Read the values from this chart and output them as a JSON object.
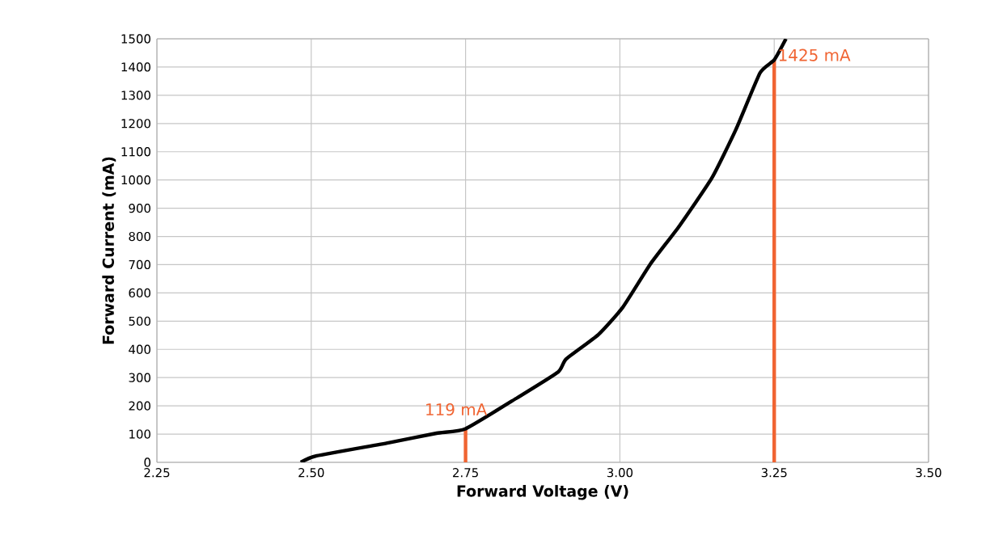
{
  "chart_data": {
    "type": "line",
    "xlabel": "Forward Voltage (V)",
    "ylabel": "Forward Current (mA)",
    "x": [
      2.483,
      2.509,
      2.625,
      2.703,
      2.75,
      2.834,
      2.9,
      2.913,
      2.965,
      3.005,
      3.05,
      3.096,
      3.149,
      3.188,
      3.227,
      3.25,
      3.269
    ],
    "series": [
      {
        "type": "bar",
        "color": "#f06432",
        "x": [
          2.75,
          3.25
        ],
        "values": [
          119,
          1425
        ]
      },
      {
        "color": "#000000",
        "values": [
          0,
          23,
          69,
          103,
          119,
          229,
          320,
          366,
          452,
          550,
          704,
          836,
          1007,
          1179,
          1379,
          1425,
          1500
        ]
      }
    ],
    "xlim": [
      2.25,
      3.5
    ],
    "ylim": [
      0,
      1500
    ],
    "xticks": [
      {
        "value": 2.25,
        "label": "2.25"
      },
      {
        "value": 2.5,
        "label": "2.50"
      },
      2.75,
      {
        "value": 3.0,
        "label": "3.00"
      },
      3.25,
      {
        "value": 3.5,
        "label": "3.50"
      }
    ],
    "yticks": [
      0,
      100,
      200,
      300,
      400,
      500,
      600,
      700,
      800,
      900,
      1000,
      1100,
      1200,
      1300,
      1400,
      1500
    ],
    "grid": true,
    "marker": "none",
    "line_style": "solid",
    "annotations": [
      {
        "text": "119 mA",
        "x": 2.75,
        "y": 119
      },
      {
        "text": "1425 mA",
        "x": 3.25,
        "y": 1425
      }
    ]
  }
}
